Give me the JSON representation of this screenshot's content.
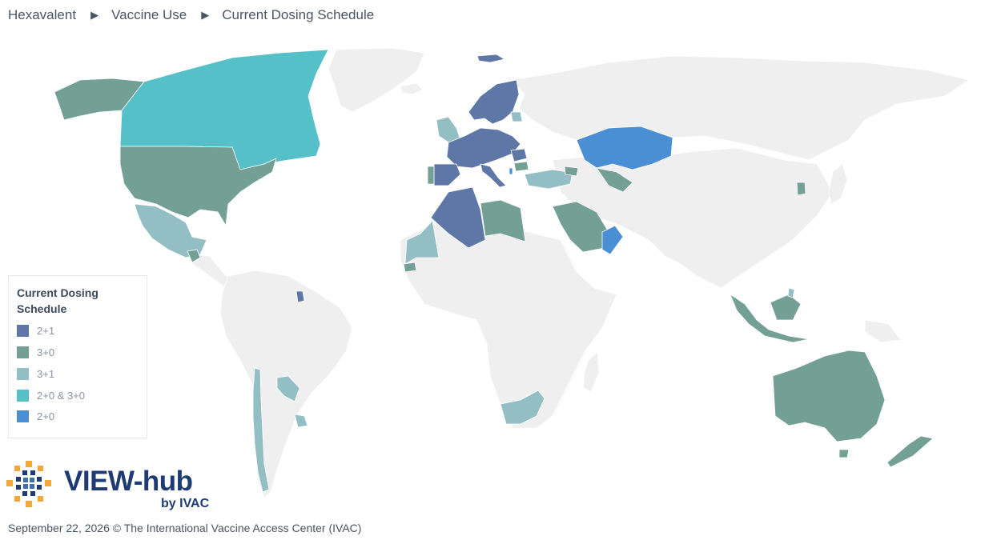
{
  "breadcrumb": {
    "items": [
      "Hexavalent",
      "Vaccine Use",
      "Current Dosing Schedule"
    ]
  },
  "legend": {
    "title": "Current Dosing Schedule",
    "items": [
      {
        "label": "2+1",
        "color": "#5f77a6"
      },
      {
        "label": "3+0",
        "color": "#739f95"
      },
      {
        "label": "3+1",
        "color": "#93bfc4"
      },
      {
        "label": "2+0 & 3+0",
        "color": "#56c0c8"
      },
      {
        "label": "2+0",
        "color": "#4a8fd4"
      }
    ]
  },
  "map": {
    "land_color": "#efefef",
    "border_color": "#ffffff"
  },
  "logo": {
    "main": "VIEW-hub",
    "sub": "by IVAC"
  },
  "footer": {
    "text": "September 22, 2026 © The International Vaccine Access Center (IVAC)"
  }
}
